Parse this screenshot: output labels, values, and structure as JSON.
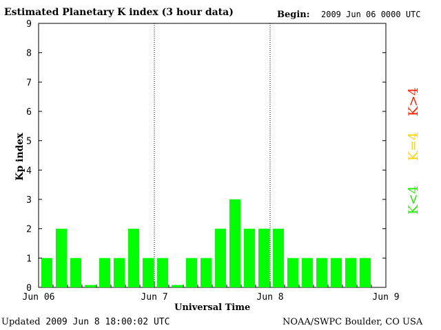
{
  "header": {
    "title": "Estimated Planetary K index (3 hour data)",
    "begin_label": "Begin:",
    "begin_value": "2009 Jun 06 0000 UTC"
  },
  "footer": {
    "updated_label": "Updated",
    "updated_value": "2009 Jun  8 18:00:02 UTC",
    "source": "NOAA/SWPC Boulder, CO USA"
  },
  "legend": {
    "high": {
      "label": "K>4",
      "color": "#ff2200"
    },
    "equal": {
      "label": "K=4",
      "color": "#ffd700"
    },
    "low": {
      "label": "K<4",
      "color": "#22ee00"
    }
  },
  "chart_data": {
    "type": "bar",
    "title": "Estimated Planetary K index (3 hour data)",
    "xlabel": "Universal Time",
    "ylabel": "Kp index",
    "ylim": [
      0,
      9
    ],
    "yticks": [
      0,
      1,
      2,
      3,
      4,
      5,
      6,
      7,
      8,
      9
    ],
    "xticks": [
      "Jun 06",
      "Jun 7",
      "Jun 8",
      "Jun 9"
    ],
    "day_separators": [
      "Jun 7",
      "Jun 8"
    ],
    "bar_color": "#00ff00",
    "values": [
      1,
      2,
      1,
      0,
      1,
      1,
      2,
      1,
      1,
      0,
      1,
      1,
      2,
      3,
      2,
      2,
      2,
      1,
      1,
      1,
      1,
      1,
      1
    ]
  }
}
